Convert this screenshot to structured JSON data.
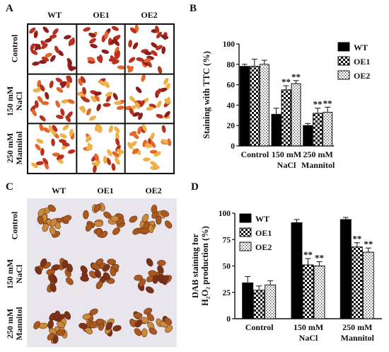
{
  "panels": {
    "A": "A",
    "B": "B",
    "C": "C",
    "D": "D"
  },
  "photo_labels": {
    "columns": [
      "WT",
      "OE1",
      "OE2"
    ],
    "rows": [
      [
        "Control"
      ],
      [
        "150 mM",
        "NaCl"
      ],
      [
        "250 mM",
        "Mannitol"
      ]
    ]
  },
  "chart_data": [
    {
      "type": "bar",
      "panel": "B",
      "ylabel": "Staining with TTC (%)",
      "ylim": [
        0,
        100
      ],
      "yticks": [
        "0",
        "20",
        "40",
        "60",
        "80",
        "100"
      ],
      "categories": [
        [
          "Control"
        ],
        [
          "150 mM",
          "NaCl"
        ],
        [
          "250 mM",
          "Mannitol"
        ]
      ],
      "legend_position": "top-right",
      "series": [
        {
          "name": "WT",
          "pattern": "solid",
          "values": [
            78,
            31,
            20
          ],
          "errors": [
            2,
            6,
            2
          ],
          "sig": [
            "",
            "",
            ""
          ]
        },
        {
          "name": "OE1",
          "pattern": "check",
          "values": [
            78,
            55,
            32
          ],
          "errors": [
            7,
            4,
            5
          ],
          "sig": [
            "",
            "**",
            "**"
          ]
        },
        {
          "name": "OE2",
          "pattern": "dotted",
          "values": [
            80,
            61,
            33
          ],
          "errors": [
            4,
            3,
            5
          ],
          "sig": [
            "",
            "**",
            "**"
          ]
        }
      ]
    },
    {
      "type": "bar",
      "panel": "D",
      "ylabel_lines": [
        "DAB staining for",
        "H₂O₂ production (%)"
      ],
      "ylim": [
        0,
        100
      ],
      "yticks": [
        "0",
        "25",
        "50",
        "75",
        "100"
      ],
      "categories": [
        [
          "Control"
        ],
        [
          "150 mM",
          "NaCl"
        ],
        [
          "250 mM",
          "Mannitol"
        ]
      ],
      "legend_position": "top-left",
      "series": [
        {
          "name": "WT",
          "pattern": "solid",
          "values": [
            34,
            91,
            94
          ],
          "errors": [
            6,
            3,
            2
          ],
          "sig": [
            "",
            "",
            ""
          ]
        },
        {
          "name": "OE1",
          "pattern": "check",
          "values": [
            27,
            51,
            68
          ],
          "errors": [
            4,
            6,
            4
          ],
          "sig": [
            "",
            "**",
            "**"
          ]
        },
        {
          "name": "OE2",
          "pattern": "dotted",
          "values": [
            32,
            50,
            63
          ],
          "errors": [
            4,
            4,
            4
          ],
          "sig": [
            "",
            "**",
            "**"
          ]
        }
      ]
    }
  ],
  "colors": {
    "seedA_dark": "#8e1e1c",
    "seedA_red": "#b8301f",
    "seedA_orange": "#e3662a",
    "seedA_yellow": "#f0b048",
    "seedC_dark": "#7a3218",
    "seedC_mid": "#a9591e",
    "seedC_light": "#c98a3a",
    "bar_solid": "#000000"
  }
}
